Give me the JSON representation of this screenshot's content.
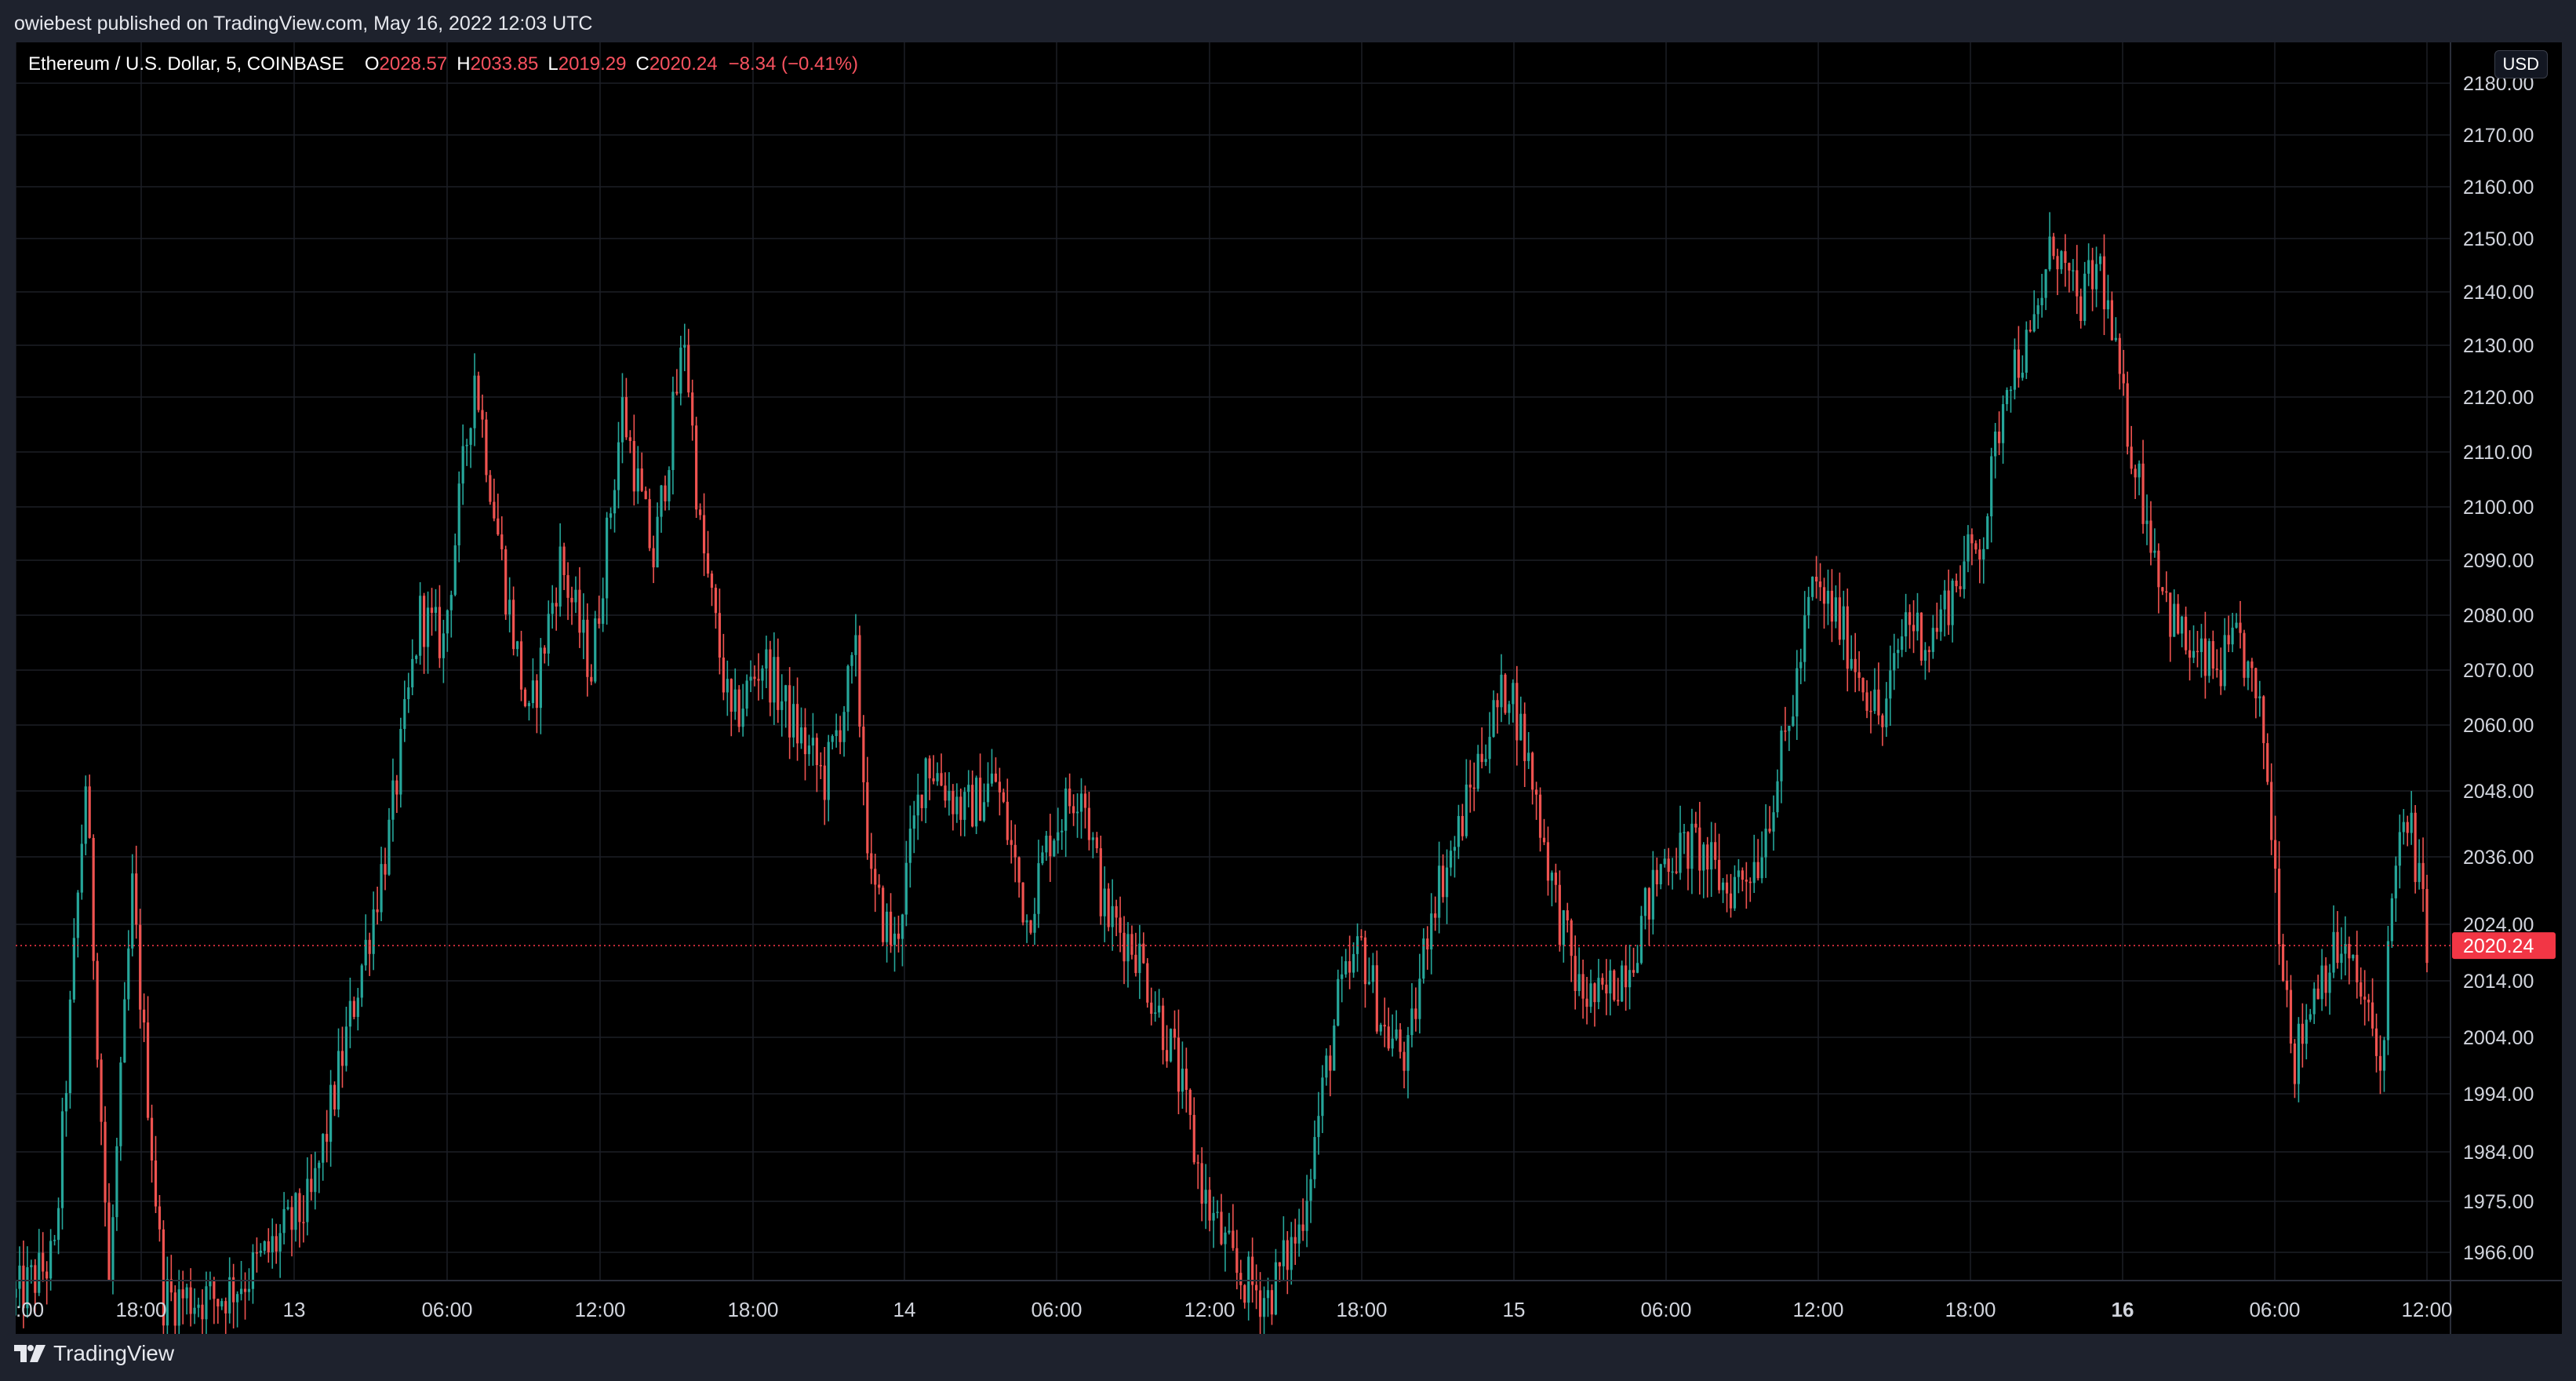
{
  "header": {
    "published_text": "owiebest published on TradingView.com, May 16, 2022 12:03 UTC"
  },
  "legend": {
    "symbol": "Ethereum / U.S. Dollar, 5, COINBASE",
    "open_label": "O",
    "open_value": "2028.57",
    "high_label": "H",
    "high_value": "2033.85",
    "low_label": "L",
    "low_value": "2019.29",
    "close_label": "C",
    "close_value": "2020.24",
    "change": "−8.34 (−0.41%)"
  },
  "price_scale": {
    "currency": "USD",
    "last_price_label": "2020.24"
  },
  "footer": {
    "brand": "TradingView"
  },
  "colors": {
    "background": "#000000",
    "up": "#26a69a",
    "down": "#ef5350",
    "grid": "#1c1f26",
    "axis_text": "#d1d4dc",
    "last_price": "#f23645"
  },
  "chart_data": {
    "type": "candlestick",
    "symbol": "ETH/USD",
    "interval": "5",
    "exchange": "COINBASE",
    "y_ticks": [
      "1966.00",
      "1975.00",
      "1984.00",
      "1994.00",
      "2004.00",
      "2014.00",
      "2024.00",
      "2036.00",
      "2048.00",
      "2060.00",
      "2070.00",
      "2080.00",
      "2090.00",
      "2100.00",
      "2110.00",
      "2120.00",
      "2130.00",
      "2140.00",
      "2150.00",
      "2160.00",
      "2170.00",
      "2180.00"
    ],
    "x_ticks": [
      {
        "label": ":00",
        "bold": false
      },
      {
        "label": "18:00",
        "bold": false
      },
      {
        "label": "13",
        "bold": false
      },
      {
        "label": "06:00",
        "bold": false
      },
      {
        "label": "12:00",
        "bold": false
      },
      {
        "label": "18:00",
        "bold": false
      },
      {
        "label": "14",
        "bold": false
      },
      {
        "label": "06:00",
        "bold": false
      },
      {
        "label": "12:00",
        "bold": false
      },
      {
        "label": "18:00",
        "bold": false
      },
      {
        "label": "15",
        "bold": false
      },
      {
        "label": "06:00",
        "bold": false
      },
      {
        "label": "12:00",
        "bold": false
      },
      {
        "label": "18:00",
        "bold": false
      },
      {
        "label": "16",
        "bold": true
      },
      {
        "label": "06:00",
        "bold": false
      },
      {
        "label": "12:00",
        "bold": false
      }
    ],
    "last_price": 2020.24,
    "price_path": [
      [
        0,
        1958
      ],
      [
        10,
        1965
      ],
      [
        18,
        2050
      ],
      [
        24,
        1960
      ],
      [
        30,
        2030
      ],
      [
        38,
        1958
      ],
      [
        52,
        1958
      ],
      [
        60,
        1962
      ],
      [
        76,
        1975
      ],
      [
        90,
        2020
      ],
      [
        96,
        2040
      ],
      [
        104,
        2080
      ],
      [
        110,
        2075
      ],
      [
        118,
        2125
      ],
      [
        126,
        2085
      ],
      [
        132,
        2060
      ],
      [
        140,
        2090
      ],
      [
        148,
        2070
      ],
      [
        156,
        2118
      ],
      [
        164,
        2090
      ],
      [
        172,
        2132
      ],
      [
        176,
        2095
      ],
      [
        184,
        2060
      ],
      [
        192,
        2072
      ],
      [
        200,
        2060
      ],
      [
        208,
        2050
      ],
      [
        216,
        2072
      ],
      [
        220,
        2030
      ],
      [
        226,
        2020
      ],
      [
        234,
        2054
      ],
      [
        244,
        2044
      ],
      [
        252,
        2050
      ],
      [
        260,
        2025
      ],
      [
        266,
        2040
      ],
      [
        274,
        2050
      ],
      [
        280,
        2026
      ],
      [
        288,
        2020
      ],
      [
        298,
        2000
      ],
      [
        306,
        1975
      ],
      [
        314,
        1962
      ],
      [
        322,
        1958
      ],
      [
        330,
        1970
      ],
      [
        340,
        2010
      ],
      [
        346,
        2020
      ],
      [
        352,
        2005
      ],
      [
        358,
        2000
      ],
      [
        364,
        2028
      ],
      [
        370,
        2038
      ],
      [
        378,
        2058
      ],
      [
        384,
        2068
      ],
      [
        390,
        2050
      ],
      [
        396,
        2028
      ],
      [
        402,
        2012
      ],
      [
        408,
        2010
      ],
      [
        416,
        2020
      ],
      [
        424,
        2036
      ],
      [
        432,
        2038
      ],
      [
        440,
        2030
      ],
      [
        448,
        2036
      ],
      [
        456,
        2060
      ],
      [
        462,
        2085
      ],
      [
        468,
        2080
      ],
      [
        474,
        2070
      ],
      [
        480,
        2060
      ],
      [
        486,
        2080
      ],
      [
        492,
        2075
      ],
      [
        500,
        2088
      ],
      [
        506,
        2095
      ],
      [
        512,
        2125
      ],
      [
        518,
        2130
      ],
      [
        524,
        2150
      ],
      [
        530,
        2137
      ],
      [
        536,
        2145
      ],
      [
        542,
        2118
      ],
      [
        548,
        2098
      ],
      [
        554,
        2080
      ],
      [
        560,
        2072
      ],
      [
        566,
        2070
      ],
      [
        572,
        2075
      ],
      [
        578,
        2058
      ],
      [
        582,
        2025
      ],
      [
        586,
        2000
      ],
      [
        592,
        2015
      ],
      [
        598,
        2020
      ],
      [
        604,
        2010
      ],
      [
        608,
        1998
      ],
      [
        612,
        2038
      ],
      [
        616,
        2040
      ],
      [
        620,
        2022
      ]
    ]
  }
}
